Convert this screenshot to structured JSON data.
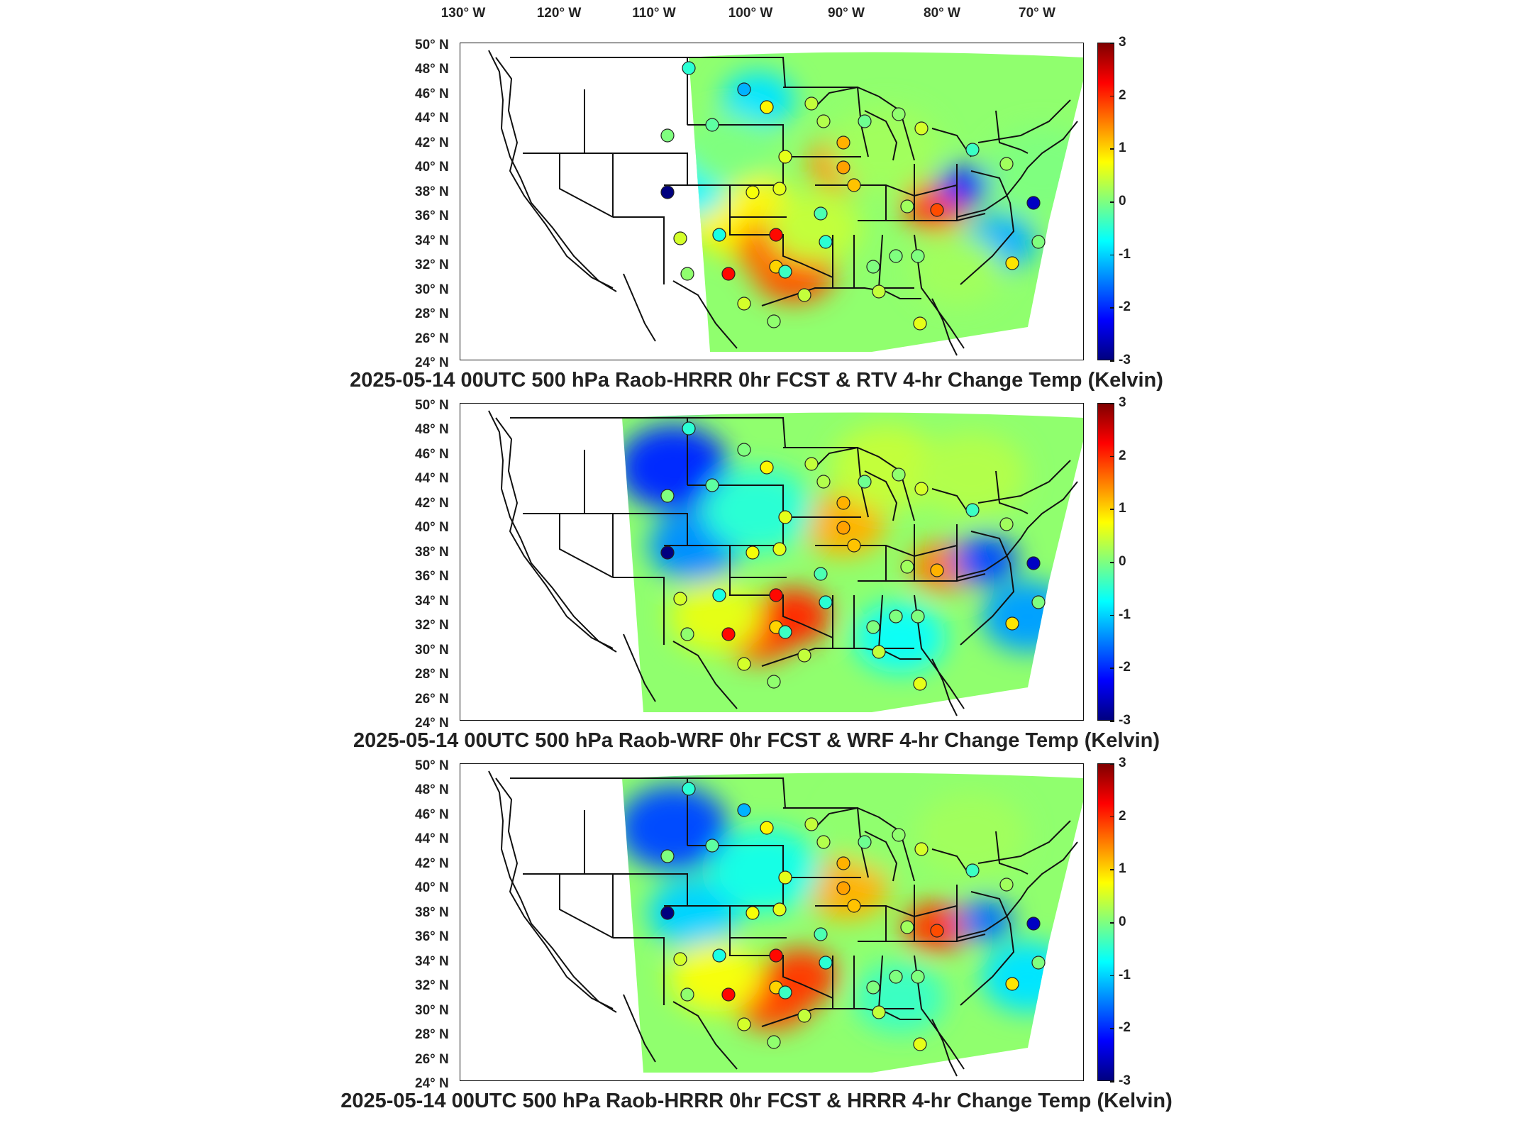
{
  "longitude_labels": [
    "130° W",
    "120° W",
    "110° W",
    "100° W",
    "90° W",
    "80° W",
    "70° W"
  ],
  "latitude_labels": [
    "50° N",
    "48° N",
    "46° N",
    "44° N",
    "42° N",
    "40° N",
    "38° N",
    "36° N",
    "34° N",
    "32° N",
    "30° N",
    "28° N",
    "26° N",
    "24° N"
  ],
  "colorbar": {
    "ticks": [
      "3",
      "2",
      "1",
      "0",
      "-1",
      "-2",
      "-3"
    ],
    "min": -3,
    "max": 3,
    "colormap": [
      "#00007f",
      "#0000ff",
      "#007fff",
      "#00ffff",
      "#7fff7f",
      "#ffff00",
      "#ff7f00",
      "#ff0000",
      "#7f0000"
    ]
  },
  "panels": [
    {
      "title": "2025-05-14 00UTC 500 hPa Raob-HRRR 0hr FCST & RTV 4-hr Change Temp (Kelvin)",
      "raob_values": [
        -0.5,
        -1.2,
        0.8,
        -0.2,
        0.0,
        0.4,
        -0.1,
        0.1,
        0.5,
        0.3,
        1.2,
        0.6,
        -0.4,
        0.2,
        1.3,
        -3.0,
        0.7,
        0.6,
        -0.3,
        0.2,
        1.8,
        1.1,
        0.5,
        -0.6,
        -0.5,
        0.0,
        0.0,
        0.0,
        2.2,
        1.0,
        2.2,
        0.1,
        0.5,
        0.4,
        -2.6,
        0.0,
        0.9,
        -0.4,
        0.4,
        0.6,
        0.1
      ]
    },
    {
      "title": "2025-05-14 00UTC 500 hPa Raob-WRF 0hr FCST & WRF 4-hr Change Temp (Kelvin)",
      "raob_values": [
        -0.5,
        0.0,
        0.8,
        -0.2,
        0.0,
        0.4,
        -0.1,
        0.1,
        0.5,
        0.3,
        1.2,
        0.6,
        -0.4,
        0.2,
        1.3,
        -3.0,
        0.7,
        0.6,
        -0.3,
        0.2,
        1.2,
        1.1,
        0.5,
        -0.6,
        -0.5,
        0.0,
        0.0,
        0.0,
        2.2,
        1.0,
        2.2,
        0.1,
        0.5,
        0.4,
        -2.6,
        0.0,
        0.9,
        -0.4,
        0.4,
        0.6,
        0.1
      ]
    },
    {
      "title": "2025-05-14 00UTC 500 hPa Raob-HRRR 0hr FCST & HRRR 4-hr Change Temp (Kelvin)",
      "raob_values": [
        -0.5,
        -1.2,
        0.8,
        -0.2,
        0.0,
        0.4,
        -0.1,
        0.1,
        0.5,
        0.3,
        1.2,
        0.6,
        -0.4,
        0.2,
        1.3,
        -3.0,
        0.7,
        0.6,
        -0.3,
        0.2,
        1.8,
        1.1,
        0.5,
        -0.6,
        -0.5,
        0.0,
        0.0,
        0.0,
        2.2,
        1.0,
        2.2,
        0.1,
        0.5,
        0.4,
        -2.6,
        0.0,
        0.9,
        -0.4,
        0.4,
        0.6,
        0.1
      ]
    }
  ]
}
